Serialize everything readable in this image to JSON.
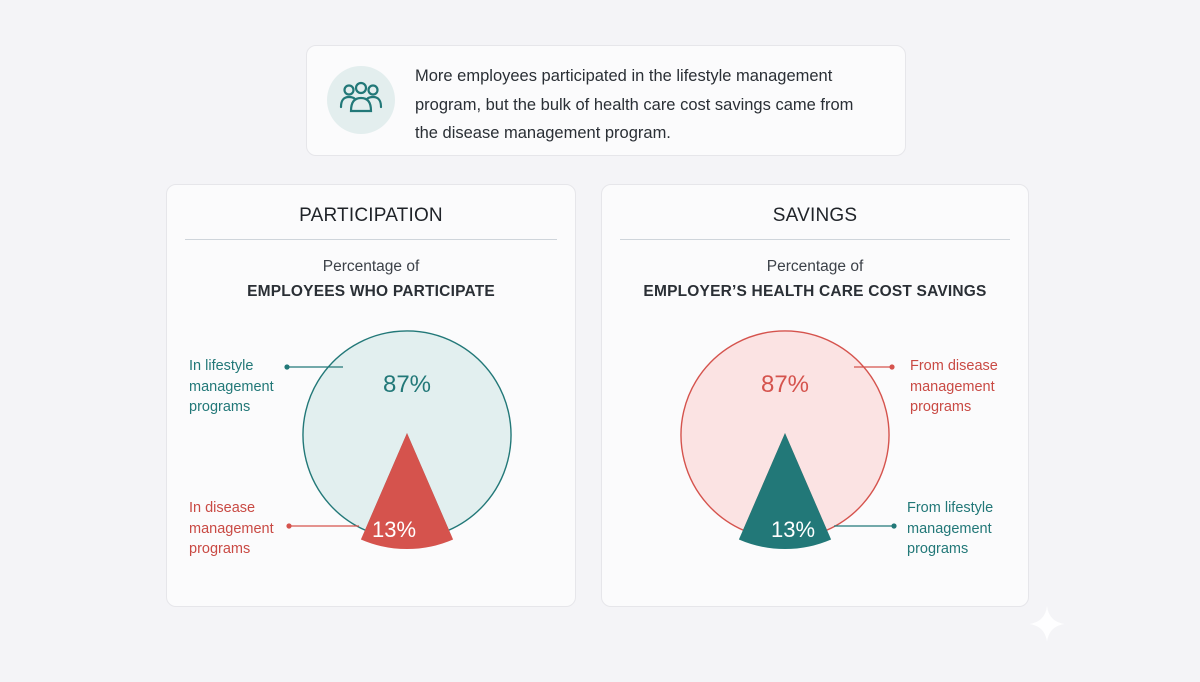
{
  "summary": {
    "icon": "people-group-icon",
    "lines": [
      "More employees participated in the lifestyle management",
      "program, but the bulk of health care cost savings came from",
      "the disease management program."
    ]
  },
  "colors": {
    "teal": "#227878",
    "teal_light": "#e2efef",
    "red": "#d5534d",
    "red_light": "#fbe3e3",
    "red_text": "#c94a44"
  },
  "chart_data": [
    {
      "type": "pie",
      "title": "PARTICIPATION",
      "subtitle": "Percentage of",
      "heading": "EMPLOYEES WHO PARTICIPATE",
      "slices": [
        {
          "label_lines": [
            "In lifestyle",
            "management",
            "programs"
          ],
          "value": 87,
          "value_label": "87%"
        },
        {
          "label_lines": [
            "In disease",
            "management",
            "programs"
          ],
          "value": 13,
          "value_label": "13%"
        }
      ]
    },
    {
      "type": "pie",
      "title": "SAVINGS",
      "subtitle": "Percentage of",
      "heading": "EMPLOYER’S HEALTH CARE COST SAVINGS",
      "slices": [
        {
          "label_lines": [
            "From disease",
            "management",
            "programs"
          ],
          "value": 87,
          "value_label": "87%"
        },
        {
          "label_lines": [
            "From lifestyle",
            "management",
            "programs"
          ],
          "value": 13,
          "value_label": "13%"
        }
      ]
    }
  ]
}
